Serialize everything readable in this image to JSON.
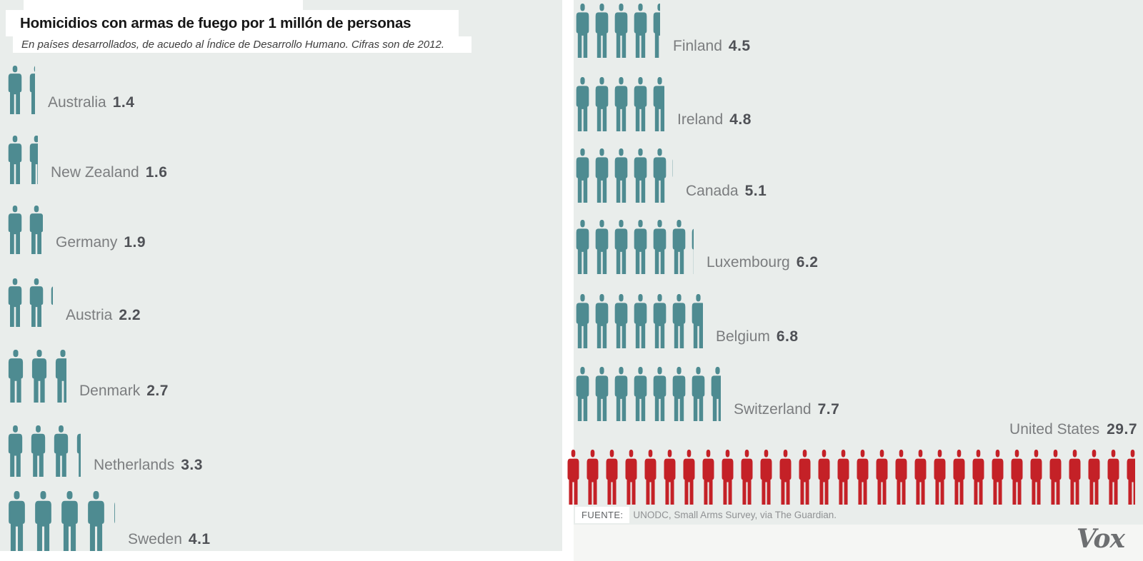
{
  "header": {
    "title": "Homicidios con armas de fuego por 1 millón de personas",
    "subtitle": "En países desarrollados, de acuedo al Índice de Desarrollo Humano. Cifras son de 2012."
  },
  "left_rows": [
    {
      "country": "Australia",
      "value": "1.4"
    },
    {
      "country": "New Zealand",
      "value": "1.6"
    },
    {
      "country": "Germany",
      "value": "1.9"
    },
    {
      "country": "Austria",
      "value": "2.2"
    },
    {
      "country": "Denmark",
      "value": "2.7"
    },
    {
      "country": "Netherlands",
      "value": "3.3"
    },
    {
      "country": "Sweden",
      "value": "4.1"
    }
  ],
  "right_rows": [
    {
      "country": "Finland",
      "value": "4.5"
    },
    {
      "country": "Ireland",
      "value": "4.8"
    },
    {
      "country": "Canada",
      "value": "5.1"
    },
    {
      "country": "Luxembourg",
      "value": "6.2"
    },
    {
      "country": "Belgium",
      "value": "6.8"
    },
    {
      "country": "Switzerland",
      "value": "7.7"
    }
  ],
  "us_row": {
    "country": "United States",
    "value": "29.7"
  },
  "footer": {
    "source_label": "FUENTE:",
    "source_text": "UNODC, Small Arms Survey, via The Guardian.",
    "brand": "Vox"
  },
  "colors": {
    "person_teal": "#4e8b91",
    "person_red": "#c42127",
    "panel_background": "#e9edeb",
    "label_gray": "#7b7d7f",
    "value_gray": "#4f5156"
  },
  "chart_data": {
    "type": "pictogram",
    "title": "Homicidios con armas de fuego por 1 millón de personas",
    "subtitle": "En países desarrollados, de acuedo al Índice de Desarrollo Humano. Cifras son de 2012.",
    "unit": "firearm homicides per 1 million people",
    "year": 2012,
    "icon": "person",
    "icon_unit": 1,
    "categories": [
      "Australia",
      "New Zealand",
      "Germany",
      "Austria",
      "Denmark",
      "Netherlands",
      "Sweden",
      "Finland",
      "Ireland",
      "Canada",
      "Luxembourg",
      "Belgium",
      "Switzerland",
      "United States"
    ],
    "values": [
      1.4,
      1.6,
      1.9,
      2.2,
      2.7,
      3.3,
      4.1,
      4.5,
      4.8,
      5.1,
      6.2,
      6.8,
      7.7,
      29.7
    ],
    "series_colors": [
      "#4e8b91",
      "#4e8b91",
      "#4e8b91",
      "#4e8b91",
      "#4e8b91",
      "#4e8b91",
      "#4e8b91",
      "#4e8b91",
      "#4e8b91",
      "#4e8b91",
      "#4e8b91",
      "#4e8b91",
      "#4e8b91",
      "#c42127"
    ],
    "highlight": {
      "category": "United States",
      "color": "#c42127"
    },
    "legend": "none",
    "grid": false,
    "source": "UNODC, Small Arms Survey, via The Guardian."
  }
}
